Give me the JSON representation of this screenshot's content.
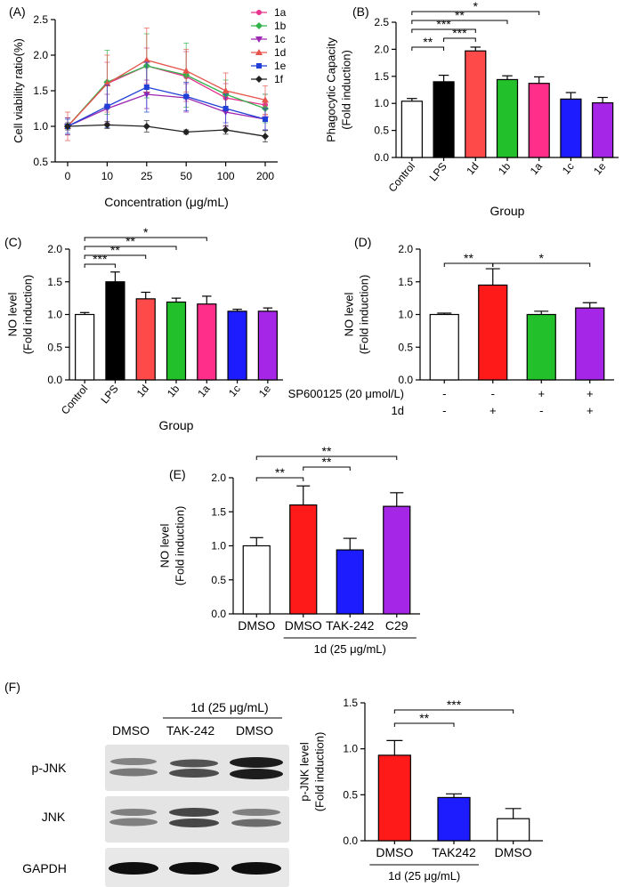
{
  "figure": {
    "panel_labels": [
      "(A)",
      "(B)",
      "(C)",
      "(D)",
      "(E)",
      "(F)"
    ]
  },
  "chart_data": [
    {
      "id": "A",
      "type": "line",
      "title": "",
      "xlabel": "Concentration (μg/mL)",
      "ylabel": "Cell  viability ratio(%)",
      "categories": [
        "0",
        "10",
        "25",
        "50",
        "100",
        "200"
      ],
      "ylim": [
        0.5,
        2.5
      ],
      "yticks": [
        0.5,
        1.0,
        1.5,
        2.0,
        2.5
      ],
      "legend_position": "top-right",
      "series": [
        {
          "name": "1a",
          "color": "#e8338f",
          "marker": "circle",
          "values": [
            1.0,
            1.6,
            1.85,
            1.7,
            1.4,
            1.3
          ],
          "errors": [
            0.12,
            0.3,
            0.25,
            0.35,
            0.2,
            0.15
          ]
        },
        {
          "name": "1b",
          "color": "#2fb34a",
          "marker": "diamond",
          "values": [
            1.0,
            1.62,
            1.85,
            1.72,
            1.45,
            1.25
          ],
          "errors": [
            0.12,
            0.45,
            0.45,
            0.45,
            0.2,
            0.2
          ]
        },
        {
          "name": "1c",
          "color": "#9c27b0",
          "marker": "triangle-down",
          "values": [
            1.0,
            1.25,
            1.45,
            1.4,
            1.2,
            1.1
          ],
          "errors": [
            0.12,
            0.2,
            0.2,
            0.2,
            0.2,
            0.15
          ]
        },
        {
          "name": "1d",
          "color": "#e5534b",
          "marker": "triangle-up",
          "values": [
            1.0,
            1.6,
            1.93,
            1.78,
            1.5,
            1.37
          ],
          "errors": [
            0.2,
            0.4,
            0.45,
            0.3,
            0.25,
            0.2
          ]
        },
        {
          "name": "1e",
          "color": "#1f3fd6",
          "marker": "square",
          "values": [
            1.0,
            1.28,
            1.55,
            1.42,
            1.25,
            1.1
          ],
          "errors": [
            0.1,
            0.3,
            0.35,
            0.2,
            0.2,
            0.15
          ]
        },
        {
          "name": "1f",
          "color": "#222222",
          "marker": "diamond",
          "values": [
            1.0,
            1.02,
            1.0,
            0.92,
            0.95,
            0.86
          ],
          "errors": [
            0.05,
            0.05,
            0.08,
            0.03,
            0.06,
            0.08
          ]
        }
      ]
    },
    {
      "id": "B",
      "type": "bar",
      "xlabel": "Group",
      "ylabel": "Phagocytic Capacity\n(Fold induction)",
      "categories": [
        "Control",
        "LPS",
        "1d",
        "1b",
        "1a",
        "1c",
        "1e"
      ],
      "values": [
        1.04,
        1.4,
        1.97,
        1.44,
        1.37,
        1.08,
        1.01
      ],
      "errors": [
        0.05,
        0.12,
        0.07,
        0.07,
        0.12,
        0.12,
        0.1
      ],
      "colors": [
        "#ffffff",
        "#000000",
        "#ff4a4a",
        "#22c02a",
        "#ff2e8a",
        "#1c1cff",
        "#a626e8"
      ],
      "ylim": [
        0.0,
        2.5
      ],
      "yticks": [
        0.0,
        0.5,
        1.0,
        1.5,
        2.0,
        2.5
      ],
      "brackets": [
        {
          "from": 0,
          "to": 4,
          "label": "*"
        },
        {
          "from": 0,
          "to": 3,
          "label": "**"
        },
        {
          "from": 0,
          "to": 2,
          "label": "***"
        },
        {
          "from": 1,
          "to": 2,
          "label": "***"
        },
        {
          "from": 0,
          "to": 1,
          "label": "**"
        }
      ]
    },
    {
      "id": "C",
      "type": "bar",
      "xlabel": "Group",
      "ylabel": "NO level\n(Fold induction)",
      "categories": [
        "Control",
        "LPS",
        "1d",
        "1b",
        "1a",
        "1c",
        "1e"
      ],
      "values": [
        1.0,
        1.5,
        1.24,
        1.19,
        1.16,
        1.05,
        1.05
      ],
      "errors": [
        0.03,
        0.15,
        0.1,
        0.06,
        0.12,
        0.03,
        0.05
      ],
      "colors": [
        "#ffffff",
        "#000000",
        "#ff4a4a",
        "#22c02a",
        "#ff2e8a",
        "#1c1cff",
        "#a626e8"
      ],
      "ylim": [
        0.0,
        2.0
      ],
      "yticks": [
        0.0,
        0.5,
        1.0,
        1.5,
        2.0
      ],
      "brackets": [
        {
          "from": 0,
          "to": 4,
          "label": "*"
        },
        {
          "from": 0,
          "to": 3,
          "label": "**"
        },
        {
          "from": 0,
          "to": 2,
          "label": "**"
        },
        {
          "from": 0,
          "to": 1,
          "label": "***"
        }
      ]
    },
    {
      "id": "D",
      "type": "bar",
      "xlabel": "",
      "ylabel": "NO level\n(Fold induction)",
      "categories": [
        "",
        "",
        "",
        ""
      ],
      "values": [
        1.0,
        1.45,
        1.0,
        1.1
      ],
      "errors": [
        0.02,
        0.25,
        0.05,
        0.08
      ],
      "colors": [
        "#ffffff",
        "#ff1a1a",
        "#22c02a",
        "#a626e8"
      ],
      "ylim": [
        0.0,
        2.0
      ],
      "yticks": [
        0.0,
        0.5,
        1.0,
        1.5,
        2.0
      ],
      "conditions": [
        {
          "label": "SP600125 (20 μmol/L)",
          "values": [
            "-",
            "-",
            "+",
            "+"
          ]
        },
        {
          "label": "1d",
          "values": [
            "-",
            "+",
            "-",
            "+"
          ]
        }
      ],
      "brackets": [
        {
          "from": 0,
          "to": 1,
          "label": "**"
        },
        {
          "from": 1,
          "to": 3,
          "label": "*"
        }
      ]
    },
    {
      "id": "E",
      "type": "bar",
      "xlabel": "",
      "ylabel": "NO level\n(Fold induction)",
      "categories": [
        "DMSO",
        "DMSO",
        "TAK-242",
        "C29"
      ],
      "values": [
        1.0,
        1.6,
        0.94,
        1.58
      ],
      "errors": [
        0.12,
        0.28,
        0.17,
        0.2
      ],
      "colors": [
        "#ffffff",
        "#ff1a1a",
        "#1c1cff",
        "#a626e8"
      ],
      "ylim": [
        0.0,
        2.0
      ],
      "yticks": [
        0.0,
        0.5,
        1.0,
        1.5,
        2.0
      ],
      "group_label": "1d (25 μg/mL)",
      "group_span": [
        1,
        3
      ],
      "brackets": [
        {
          "from": 0,
          "to": 1,
          "label": "**"
        },
        {
          "from": 1,
          "to": 2,
          "label": "**"
        },
        {
          "from": 0,
          "to": 3,
          "label": "**"
        }
      ]
    },
    {
      "id": "F",
      "type": "bar",
      "xlabel": "",
      "ylabel": "p-JNK level\n(Fold induction)",
      "categories": [
        "DMSO",
        "TAK242",
        "DMSO"
      ],
      "values": [
        0.93,
        0.47,
        0.24
      ],
      "errors": [
        0.16,
        0.04,
        0.11
      ],
      "colors": [
        "#ff1a1a",
        "#1c1cff",
        "#ffffff"
      ],
      "ylim": [
        0.0,
        1.5
      ],
      "yticks": [
        0.0,
        0.5,
        1.0,
        1.5
      ],
      "group_label": "1d (25 μg/mL)",
      "group_span": [
        0,
        1
      ],
      "brackets": [
        {
          "from": 0,
          "to": 1,
          "label": "**"
        },
        {
          "from": 0,
          "to": 2,
          "label": "***"
        }
      ]
    }
  ],
  "blot": {
    "group_label": "1d (25 μg/mL)",
    "lanes": [
      "DMSO",
      "TAK-242",
      "DMSO"
    ],
    "rows": [
      "p-JNK",
      "JNK",
      "GAPDH"
    ]
  }
}
